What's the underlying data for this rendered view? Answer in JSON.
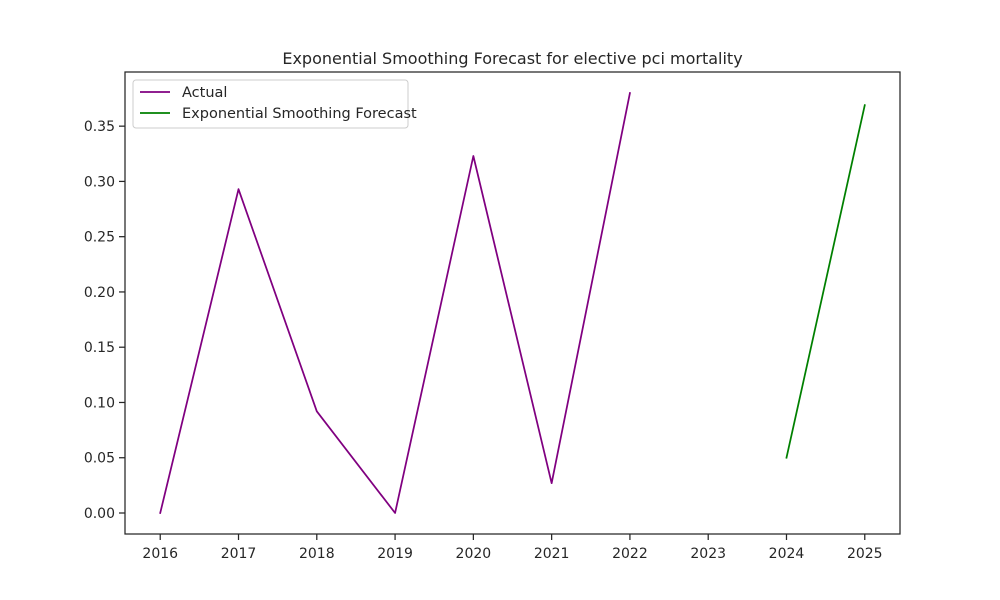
{
  "chart_data": {
    "type": "line",
    "title": "Exponential Smoothing Forecast for elective pci mortality",
    "xlabel": "",
    "ylabel": "",
    "x_ticks": [
      "2016",
      "2017",
      "2018",
      "2019",
      "2020",
      "2021",
      "2022",
      "2023",
      "2024",
      "2025"
    ],
    "y_ticks": [
      "0.00",
      "0.05",
      "0.10",
      "0.15",
      "0.20",
      "0.25",
      "0.30",
      "0.35"
    ],
    "xlim": [
      2015.55,
      2025.45
    ],
    "ylim": [
      -0.019,
      0.399
    ],
    "grid": false,
    "legend_position": "top-left",
    "series": [
      {
        "name": "Actual",
        "color": "#800080",
        "x": [
          2016,
          2017,
          2018,
          2019,
          2020,
          2021,
          2022
        ],
        "y": [
          0.0,
          0.293,
          0.092,
          0.0,
          0.323,
          0.027,
          0.38
        ]
      },
      {
        "name": "Exponential Smoothing Forecast",
        "color": "#008000",
        "x": [
          2024,
          2025
        ],
        "y": [
          0.05,
          0.369
        ]
      }
    ]
  }
}
